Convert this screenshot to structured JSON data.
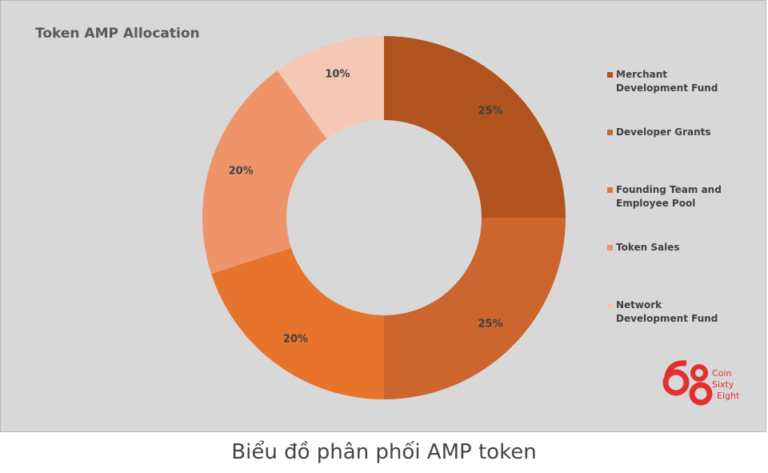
{
  "chart_data": {
    "type": "donut",
    "title": "Token AMP Allocation",
    "categories": [
      "Merchant Development Fund",
      "Developer Grants",
      "Founding Team and Employee Pool",
      "Token Sales",
      "Network Development Fund"
    ],
    "values": [
      25,
      25,
      20,
      20,
      10
    ],
    "value_labels": [
      "25%",
      "25%",
      "20%",
      "20%",
      "10%"
    ],
    "colors": [
      "#b0531f",
      "#cc652e",
      "#e8732c",
      "#ef9468",
      "#f5c7b5"
    ],
    "legend": "right"
  },
  "logo": [
    "Coin",
    "Sixty",
    "Eight"
  ],
  "caption": "Biểu đồ phân phối AMP token"
}
